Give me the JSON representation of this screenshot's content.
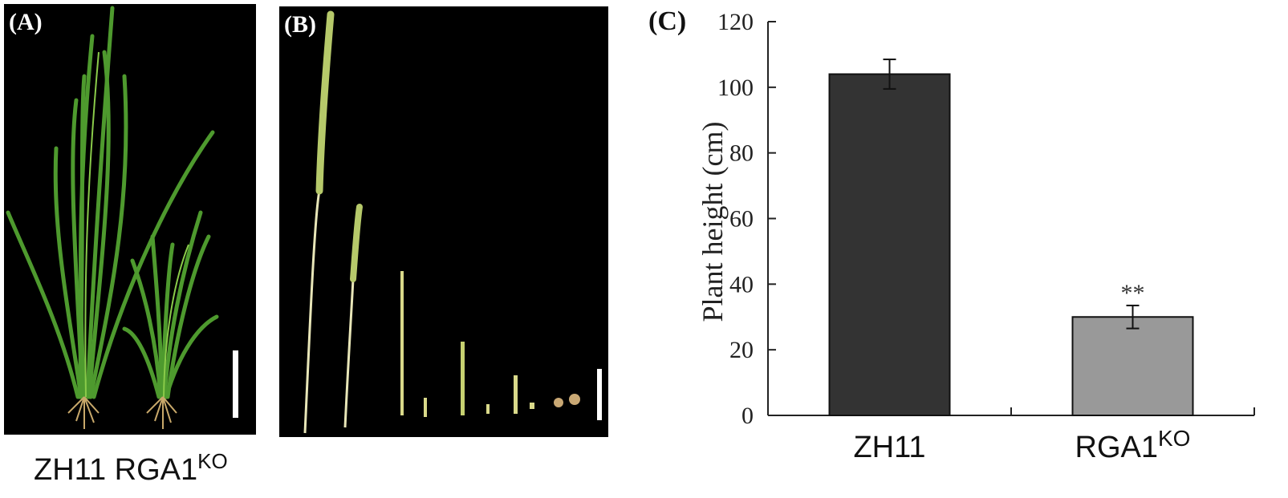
{
  "panels": {
    "a": {
      "letter": "(A)",
      "label_left": "ZH11",
      "label_right": "RGA1",
      "label_right_sup": "KO"
    },
    "b": {
      "letter": "(B)"
    },
    "c": {
      "letter": "(C)"
    }
  },
  "chart_data": {
    "type": "bar",
    "categories": [
      "ZH11",
      "RGA1"
    ],
    "category_superscripts": [
      "",
      "KO"
    ],
    "values": [
      104,
      30
    ],
    "errors": [
      4.5,
      3.5
    ],
    "annotations": [
      "",
      "**"
    ],
    "bar_colors": [
      "#333333",
      "#999999"
    ],
    "ylabel": "Plant height (cm)",
    "xlabel": "",
    "ylim": [
      0,
      120
    ],
    "yticks": [
      0,
      20,
      40,
      60,
      80,
      100,
      120
    ],
    "grid": false
  }
}
